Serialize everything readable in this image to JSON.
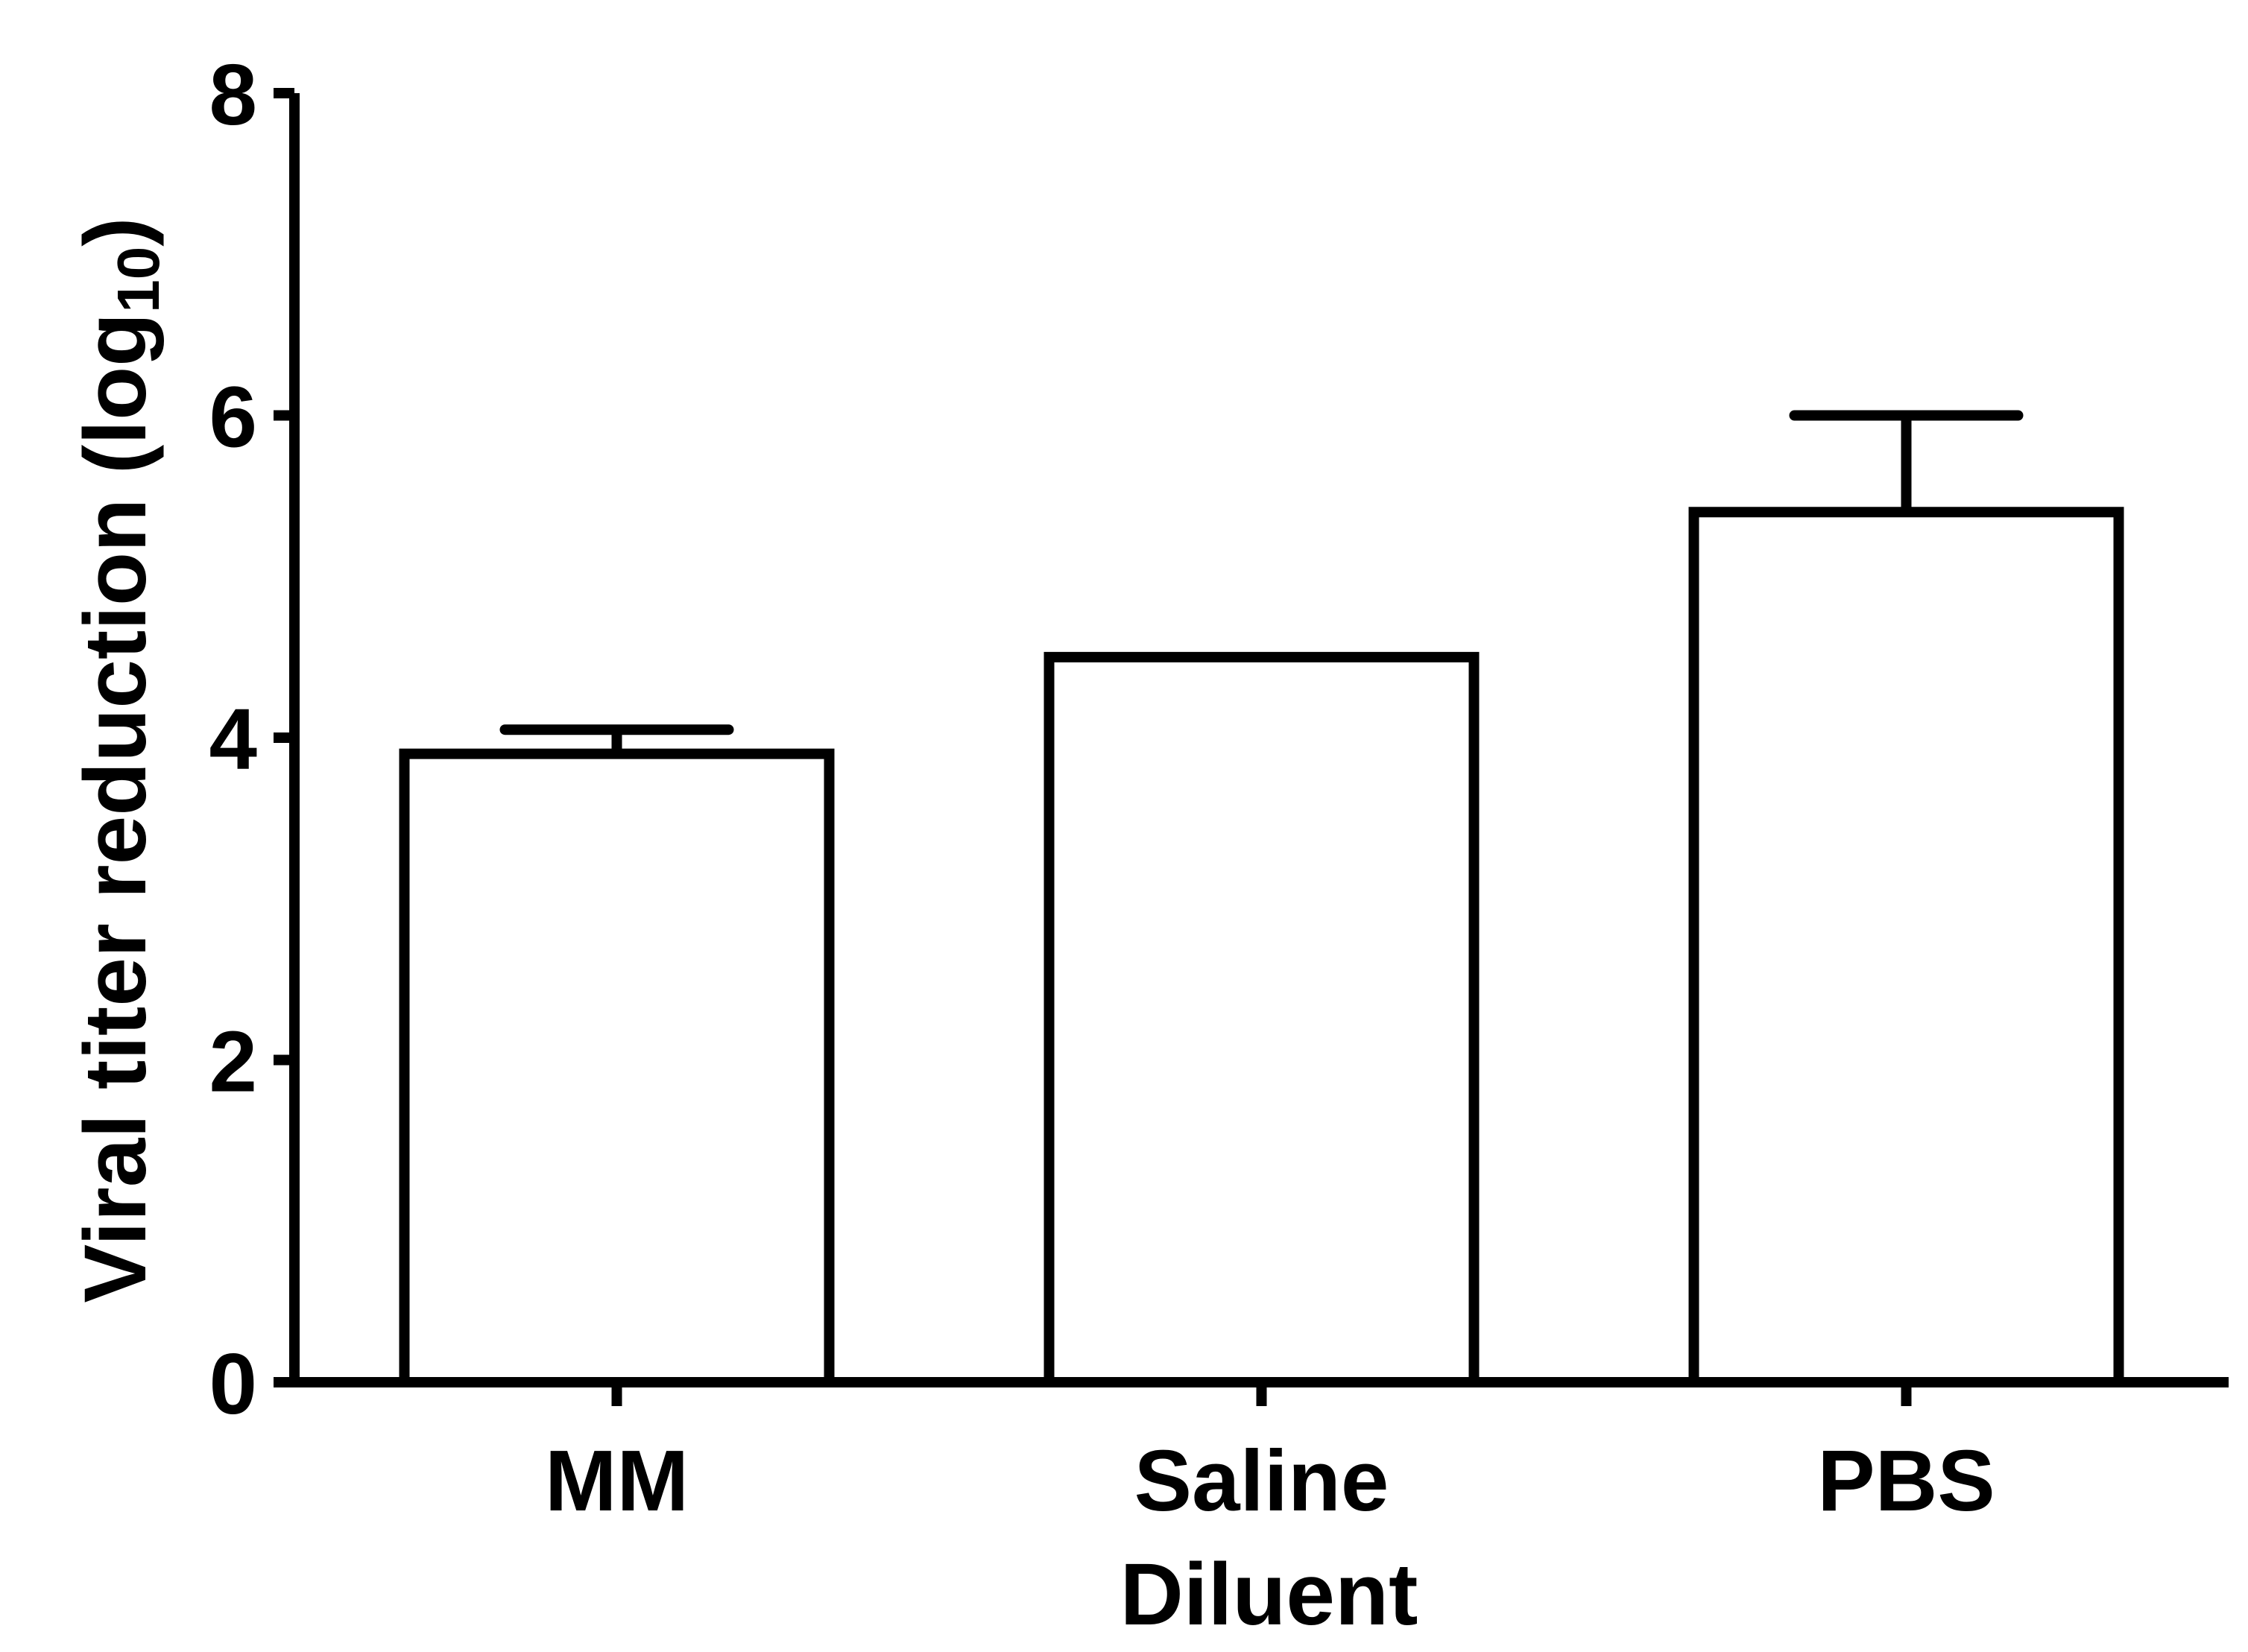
{
  "chart_data": {
    "type": "bar",
    "title": "",
    "xlabel": "Diluent",
    "ylabel": "Viral titer reduction (log",
    "ylabel_subscript": "10",
    "ylabel_close": ")",
    "categories": [
      "MM",
      "Saline",
      "PBS"
    ],
    "values": [
      3.9,
      4.5,
      5.4
    ],
    "error": [
      0.15,
      0.0,
      0.6
    ],
    "ylim": [
      0,
      8
    ],
    "yticks": [
      0,
      2,
      4,
      6,
      8
    ],
    "grid": false,
    "legend": "none",
    "colors": {
      "bar_fill": "#ffffff",
      "bar_stroke": "#000000",
      "axis": "#000000"
    }
  }
}
